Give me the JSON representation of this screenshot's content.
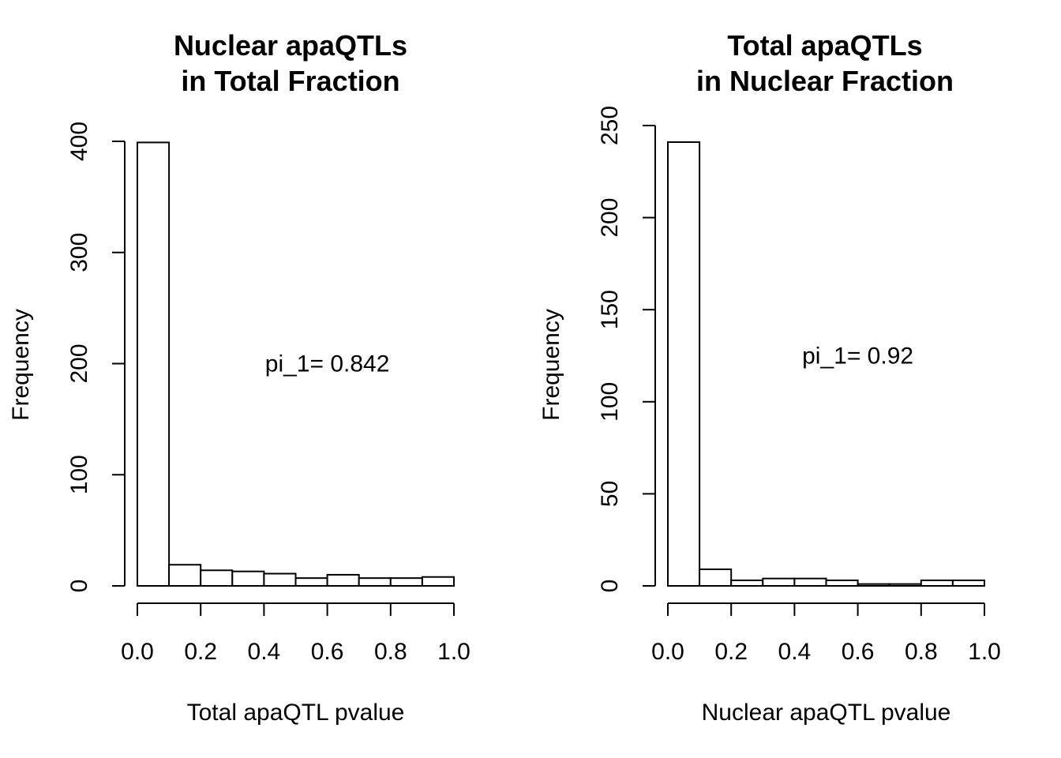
{
  "chart_data": [
    {
      "type": "bar",
      "title_lines": [
        "Nuclear apaQTLs",
        "in Total Fraction"
      ],
      "xlabel": "Total apaQTL pvalue",
      "ylabel": "Frequency",
      "bin_edges": [
        0.0,
        0.1,
        0.2,
        0.3,
        0.4,
        0.5,
        0.6,
        0.7,
        0.8,
        0.9,
        1.0
      ],
      "values": [
        399,
        19,
        14,
        13,
        11,
        7,
        10,
        7,
        7,
        8
      ],
      "xlim": [
        0.0,
        1.0
      ],
      "ylim": [
        0,
        400
      ],
      "x_ticks": [
        "0.0",
        "0.2",
        "0.4",
        "0.6",
        "0.8",
        "1.0"
      ],
      "x_tick_values": [
        0.0,
        0.2,
        0.4,
        0.6,
        0.8,
        1.0
      ],
      "y_ticks": [
        "0",
        "100",
        "200",
        "300",
        "400"
      ],
      "y_tick_values": [
        0,
        100,
        200,
        300,
        400
      ],
      "annotation": "pi_1= 0.842",
      "annotation_x": 0.6,
      "annotation_y": 200
    },
    {
      "type": "bar",
      "title_lines": [
        "Total apaQTLs",
        "in Nuclear Fraction"
      ],
      "xlabel": "Nuclear apaQTL pvalue",
      "ylabel": "Frequency",
      "bin_edges": [
        0.0,
        0.1,
        0.2,
        0.3,
        0.4,
        0.5,
        0.6,
        0.7,
        0.8,
        0.9,
        1.0
      ],
      "values": [
        241,
        9,
        3,
        4,
        4,
        3,
        1,
        1,
        3,
        3
      ],
      "xlim": [
        0.0,
        1.0
      ],
      "ylim": [
        0,
        250
      ],
      "x_ticks": [
        "0.0",
        "0.2",
        "0.4",
        "0.6",
        "0.8",
        "1.0"
      ],
      "x_tick_values": [
        0.0,
        0.2,
        0.4,
        0.6,
        0.8,
        1.0
      ],
      "y_ticks": [
        "0",
        "50",
        "100",
        "150",
        "200",
        "250"
      ],
      "y_tick_values": [
        0,
        50,
        100,
        150,
        200,
        250
      ],
      "annotation": "pi_1= 0.92",
      "annotation_x": 0.6,
      "annotation_y": 125
    }
  ]
}
